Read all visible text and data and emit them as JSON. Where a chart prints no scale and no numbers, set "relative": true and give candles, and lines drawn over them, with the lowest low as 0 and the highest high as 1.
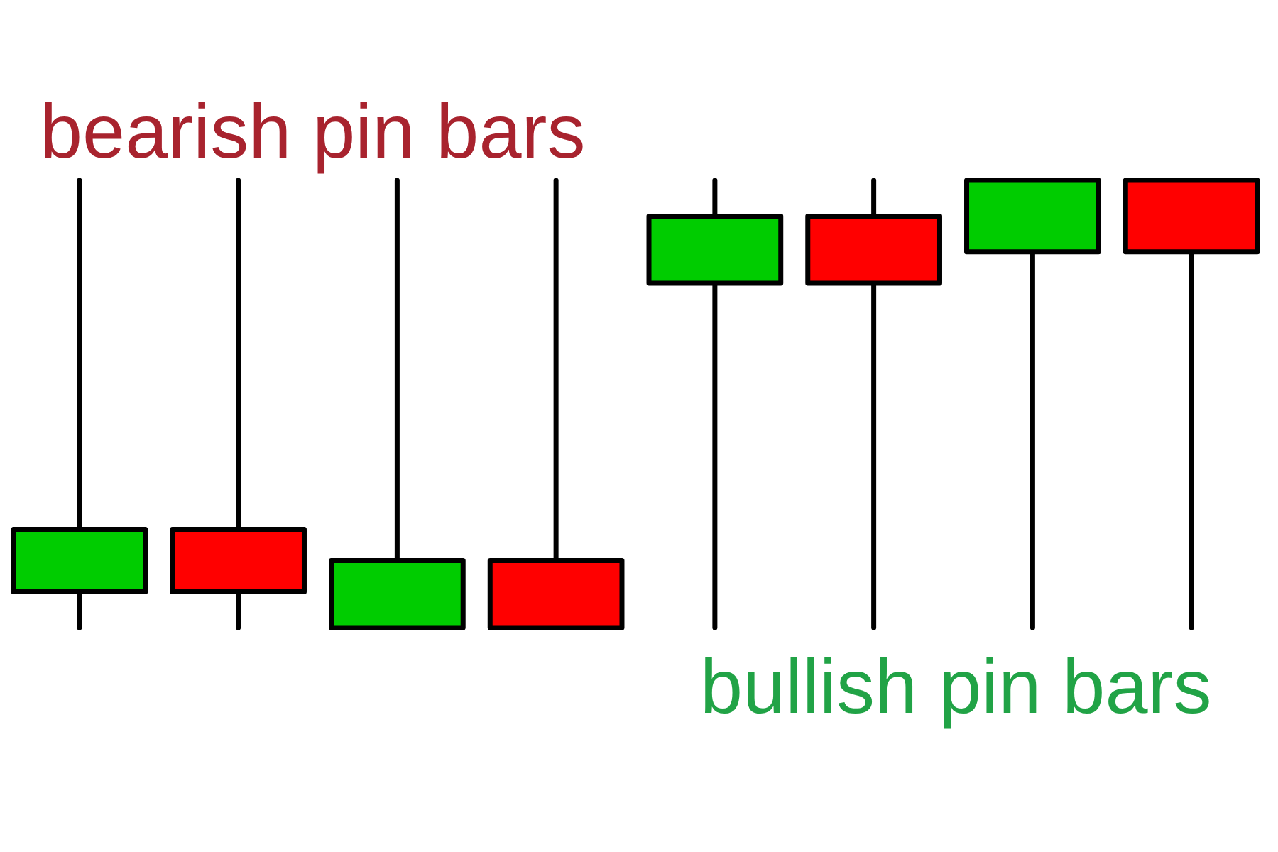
{
  "chart_data": {
    "type": "candlestick",
    "relative": true,
    "categories": [
      null,
      null,
      null,
      null,
      null,
      null,
      null,
      null
    ],
    "ohlc": [
      [
        0.08,
        1,
        0,
        0.22
      ],
      [
        0.22,
        1,
        0,
        0.08
      ],
      [
        0,
        1,
        0,
        0.15
      ],
      [
        0.15,
        1,
        0,
        0
      ],
      [
        0.77,
        1,
        0,
        0.92
      ],
      [
        0.92,
        1,
        0,
        0.77
      ],
      [
        0.84,
        1,
        0,
        1
      ],
      [
        1,
        1,
        0,
        0.84
      ]
    ],
    "colors": [
      "#00cc00",
      "#ff0000",
      "#00cc00",
      "#ff0000",
      "#00cc00",
      "#ff0000",
      "#00cc00",
      "#ff0000"
    ],
    "annotations": [
      "bearish pin bars",
      "bullish pin bars"
    ]
  }
}
